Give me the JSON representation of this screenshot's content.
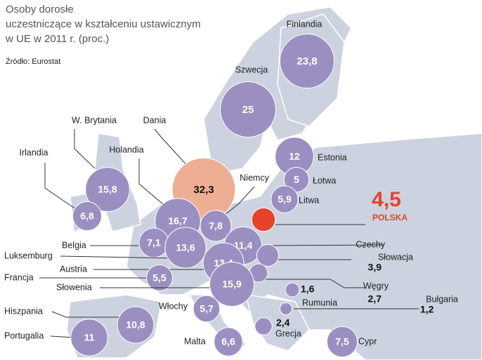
{
  "header": {
    "title_lines": [
      "Osoby dorosłe",
      "uczestniczące w kształceniu ustawicznym",
      "w UE w 2011 r. (proc.)"
    ],
    "source": "Źródło: Eurostat"
  },
  "countries": [
    {
      "name": "Finlandia",
      "value": 23.8,
      "label": "23,8",
      "color": "#9b8fc2"
    },
    {
      "name": "Szwecja",
      "value": 25,
      "label": "25",
      "color": "#9b8fc2"
    },
    {
      "name": "Estonia",
      "value": 12,
      "label": "12",
      "color": "#9b8fc2"
    },
    {
      "name": "Łotwa",
      "value": 5,
      "label": "5",
      "color": "#9b8fc2"
    },
    {
      "name": "Litwa",
      "value": 5.9,
      "label": "5,9",
      "color": "#9b8fc2"
    },
    {
      "name": "Dania",
      "value": 32.3,
      "label": "32,3",
      "color": "#eeae93"
    },
    {
      "name": "W. Brytania",
      "value": 15.8,
      "label": "15,8",
      "color": "#9b8fc2"
    },
    {
      "name": "Irlandia",
      "value": 6.8,
      "label": "6,8",
      "color": "#9b8fc2"
    },
    {
      "name": "Holandia",
      "value": 16.7,
      "label": "16,7",
      "color": "#9b8fc2"
    },
    {
      "name": "Niemcy",
      "value": 7.8,
      "label": "7,8",
      "color": "#9b8fc2"
    },
    {
      "name": "POLSKA",
      "value": 4.5,
      "label": "4,5",
      "color": "#e5432c"
    },
    {
      "name": "Belgia",
      "value": 7.1,
      "label": "7,1",
      "color": "#9b8fc2"
    },
    {
      "name": "Luksemburg",
      "value": 13.6,
      "label": "13,6",
      "color": "#9b8fc2"
    },
    {
      "name": "Czechy",
      "value": 11.4,
      "label": "11,4",
      "color": "#9b8fc2"
    },
    {
      "name": "Słowacja",
      "value": 3.9,
      "label": "3,9",
      "color": "#9b8fc2"
    },
    {
      "name": "Austria",
      "value": 13.4,
      "label": "13,4",
      "color": "#9b8fc2"
    },
    {
      "name": "Francja",
      "value": 5.5,
      "label": "5,5",
      "color": "#9b8fc2"
    },
    {
      "name": "Węgry",
      "value": 2.7,
      "label": "2,7",
      "color": "#9b8fc2"
    },
    {
      "name": "Słowenia",
      "value": 15.9,
      "label": "15,9",
      "color": "#9b8fc2"
    },
    {
      "name": "Rumunia",
      "value": 1.6,
      "label": "1,6",
      "color": "#9b8fc2"
    },
    {
      "name": "Bułgaria",
      "value": 1.2,
      "label": "1,2",
      "color": "#9b8fc2"
    },
    {
      "name": "Hiszpania",
      "value": 10.8,
      "label": "10,8",
      "color": "#9b8fc2"
    },
    {
      "name": "Włochy",
      "value": 5.7,
      "label": "5,7",
      "color": "#9b8fc2"
    },
    {
      "name": "Grecja",
      "value": 2.4,
      "label": "2,4",
      "color": "#9b8fc2"
    },
    {
      "name": "Portugalia",
      "value": 11,
      "label": "11",
      "color": "#9b8fc2"
    },
    {
      "name": "Malta",
      "value": 6.6,
      "label": "6,6",
      "color": "#9b8fc2"
    },
    {
      "name": "Cypr",
      "value": 7.5,
      "label": "7,5",
      "color": "#9b8fc2"
    }
  ]
}
